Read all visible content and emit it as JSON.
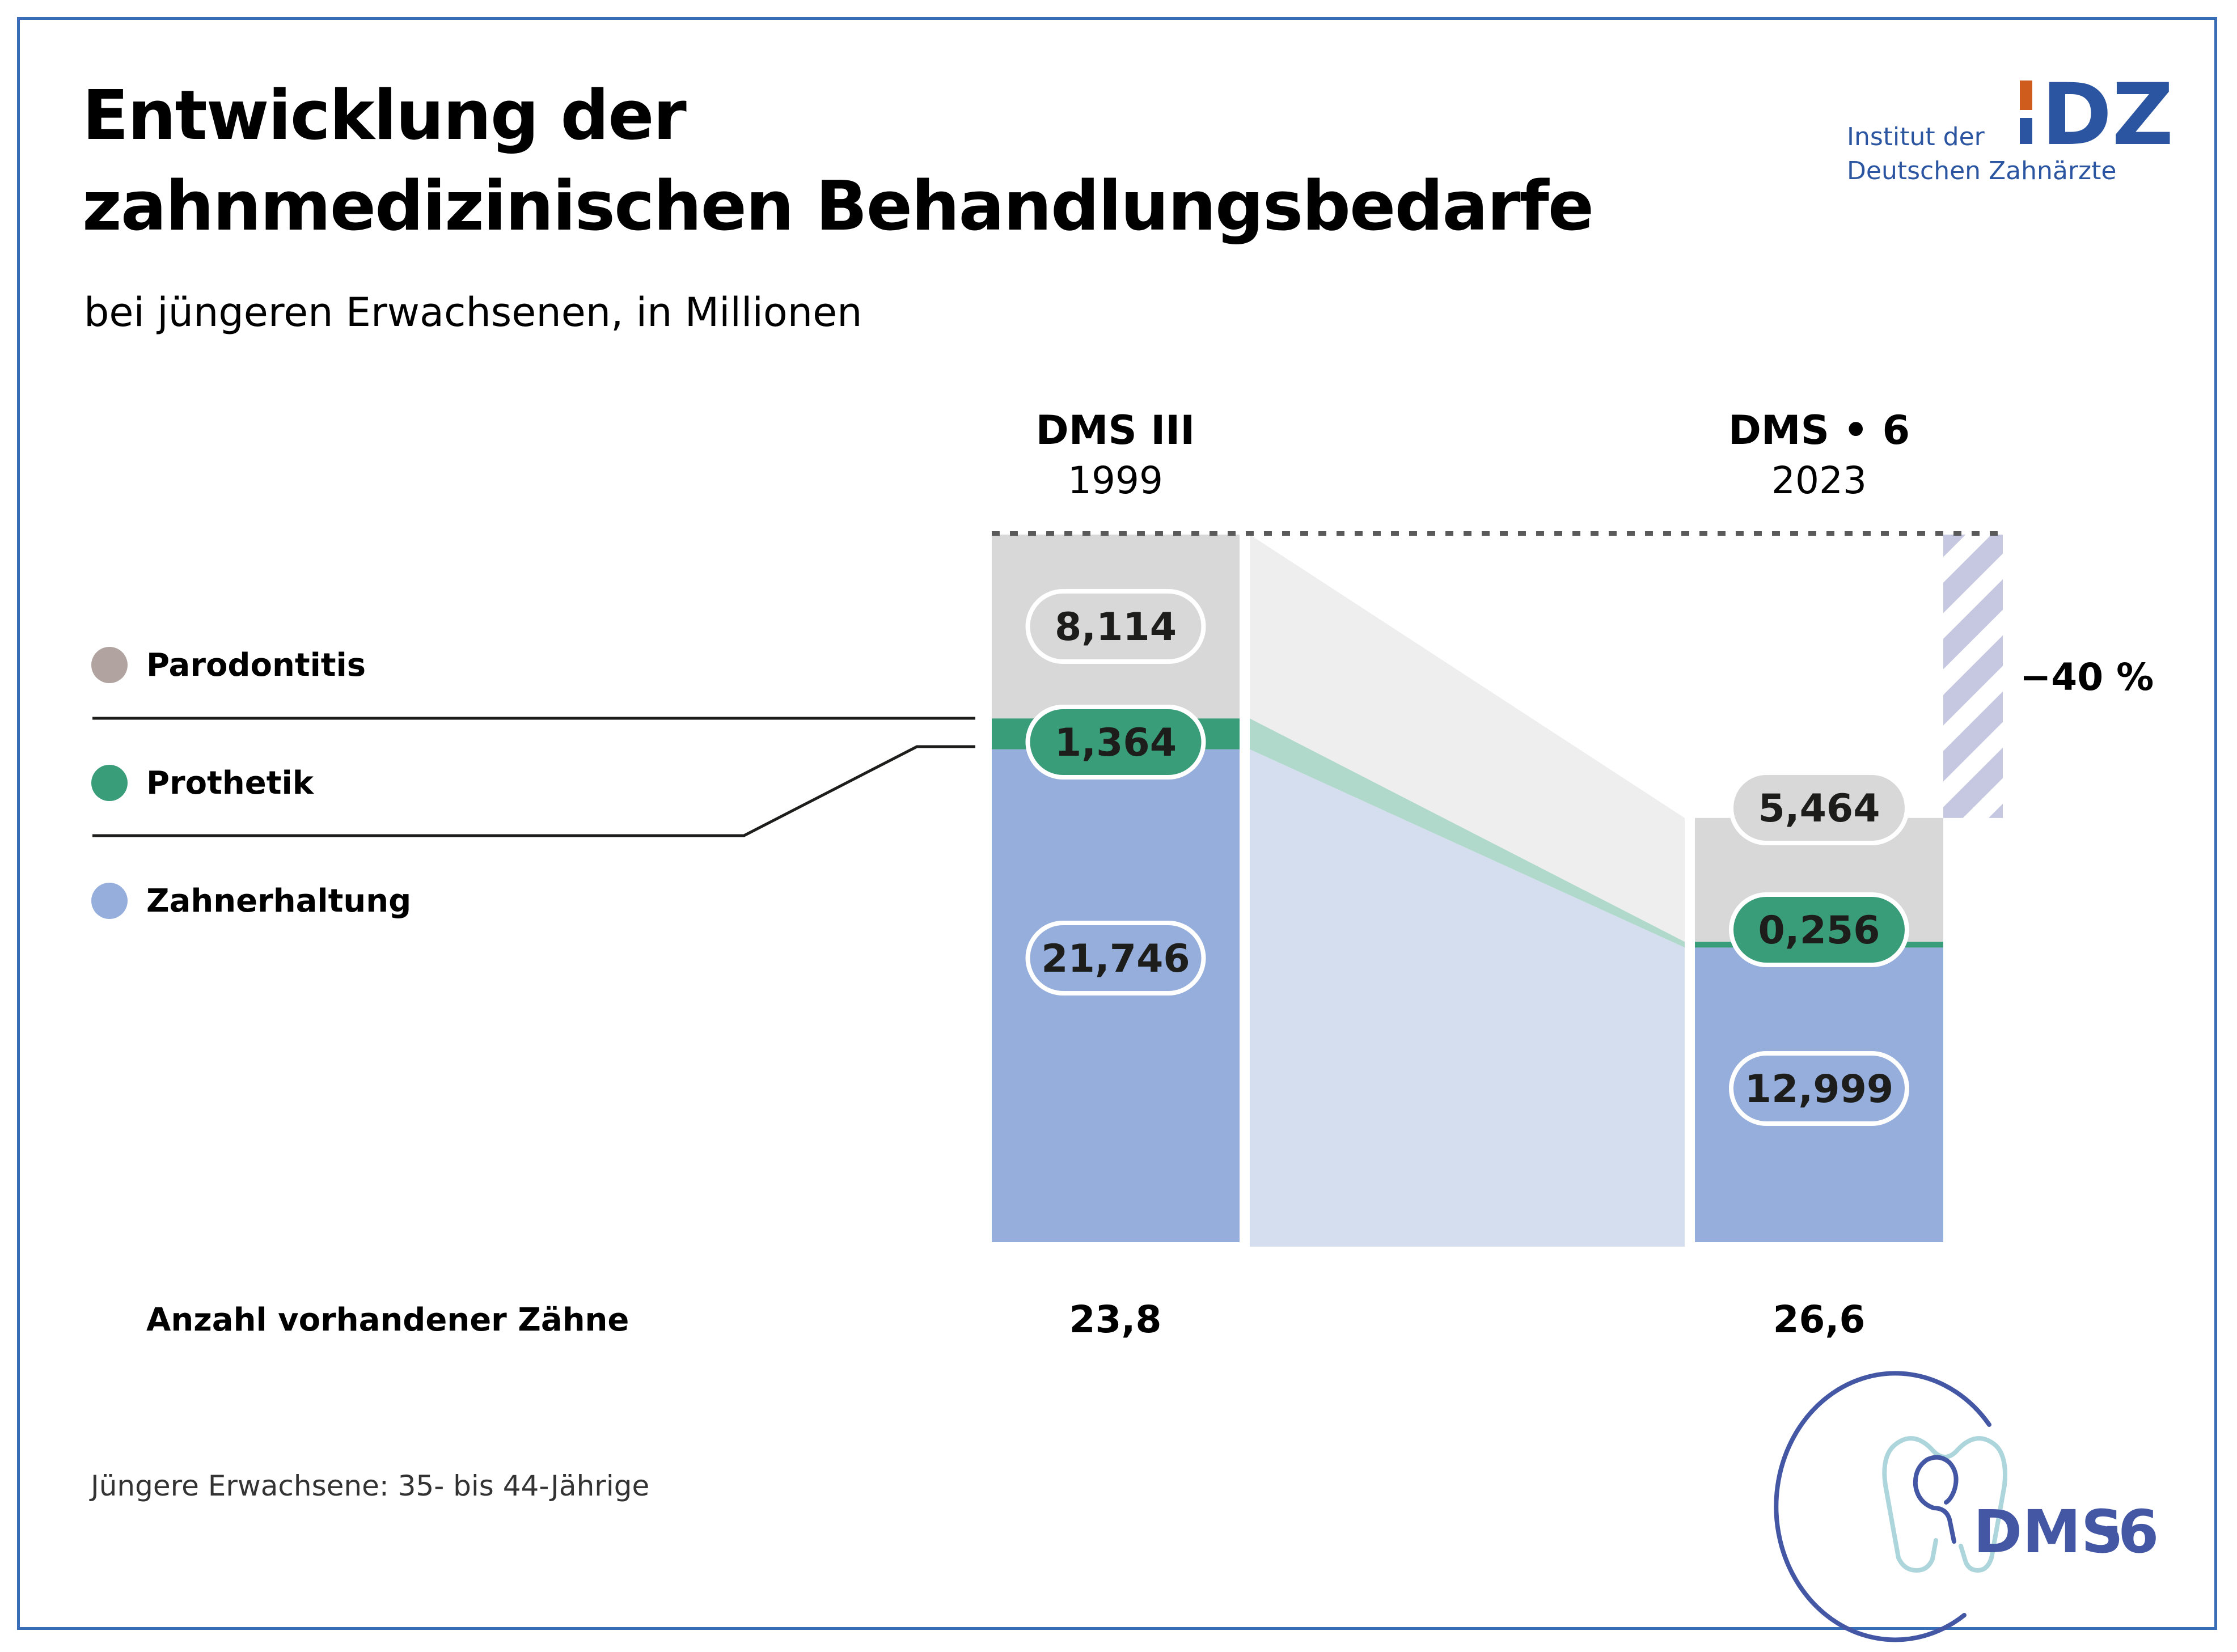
{
  "header": {
    "title_line1": "Entwicklung der",
    "title_line2": "zahnmedizinischen Behandlungsbedarfe",
    "subtitle": "bei jüngeren Erwachsenen, in Millionen"
  },
  "logo_idz": {
    "line1": "Institut der",
    "line2": "Deutschen Zahnärzte",
    "mark": "DZ",
    "accent_color": "#cf5c1d",
    "brand_color": "#2b55a0"
  },
  "logo_dms": {
    "text": "DMS",
    "dot": "·",
    "number": "6",
    "icon": "tooth-icon"
  },
  "footnote": "Jüngere Erwachsene: 35- bis 44-Jährige",
  "colors": {
    "parodontitis": "#d8d8d8",
    "parodontitis_legend": "#b1a4a0",
    "prothetik": "#3a9d7a",
    "zahnerhaltung": "#96aedb",
    "flow_parodontitis": "#eeeeee",
    "flow_prothetik": "#b0d9cc",
    "flow_zahnerhaltung": "#d5deef",
    "hatch": "#c5c8e0",
    "frame": "#3a6db5"
  },
  "chart_data": {
    "type": "bar",
    "subtype": "stacked-bar-with-flow",
    "title": "Entwicklung der zahnmedizinischen Behandlungsbedarfe",
    "subtitle": "bei jüngeren Erwachsenen, in Millionen",
    "unit": "Millionen",
    "categories": [
      {
        "name": "DMS III",
        "year": "1999"
      },
      {
        "name": "DMS • 6",
        "year": "2023"
      }
    ],
    "series": [
      {
        "name": "Zahnerhaltung",
        "values": [
          21.746,
          12.999
        ],
        "labels": [
          "21,746",
          "12,999"
        ]
      },
      {
        "name": "Prothetik",
        "values": [
          1.364,
          0.256
        ],
        "labels": [
          "1,364",
          "0,256"
        ]
      },
      {
        "name": "Parodontitis",
        "values": [
          8.114,
          5.464
        ],
        "labels": [
          "8,114",
          "5,464"
        ]
      }
    ],
    "legend": [
      "Parodontitis",
      "Prothetik",
      "Zahnerhaltung"
    ],
    "legend_position": "left",
    "change_annotation": "−40 %",
    "extra_row": {
      "label": "Anzahl vorhandener Zähne",
      "values": [
        "23,8",
        "26,6"
      ]
    }
  }
}
